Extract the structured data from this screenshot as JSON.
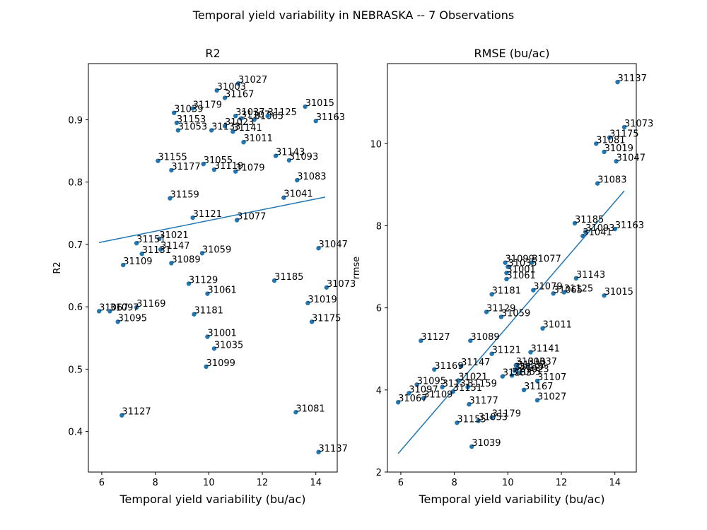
{
  "figure": {
    "suptitle": "Temporal yield variability in NEBRASKA -- 7 Observations"
  },
  "colors": {
    "marker": "#1f77b4",
    "line": "#1f77b4",
    "axis": "#000000"
  },
  "chart_data": [
    {
      "type": "scatter",
      "title": "R2",
      "xlabel": "Temporal yield variability (bu/ac)",
      "ylabel": "R2",
      "xlim": [
        5.5,
        14.8
      ],
      "ylim": [
        0.335,
        0.99
      ],
      "xticks": [
        6,
        8,
        10,
        12,
        14
      ],
      "yticks": [
        0.4,
        0.5,
        0.6,
        0.7,
        0.8,
        0.9
      ],
      "ytick_labels": [
        "0.4",
        "0.5",
        "0.6",
        "0.7",
        "0.8",
        "0.9"
      ],
      "trendline": {
        "x": [
          5.9,
          14.35
        ],
        "y": [
          0.703,
          0.776
        ]
      },
      "points": [
        {
          "label": "31027",
          "x": 11.1,
          "y": 0.958
        },
        {
          "label": "31003",
          "x": 10.3,
          "y": 0.947
        },
        {
          "label": "31167",
          "x": 10.6,
          "y": 0.935
        },
        {
          "label": "31179",
          "x": 9.4,
          "y": 0.918
        },
        {
          "label": "31039",
          "x": 8.7,
          "y": 0.911
        },
        {
          "label": "31015",
          "x": 13.6,
          "y": 0.921
        },
        {
          "label": "31037",
          "x": 11.0,
          "y": 0.906
        },
        {
          "label": "31107",
          "x": 11.2,
          "y": 0.902
        },
        {
          "label": "31065",
          "x": 11.7,
          "y": 0.9
        },
        {
          "label": "31125",
          "x": 12.2,
          "y": 0.906
        },
        {
          "label": "31163",
          "x": 14.0,
          "y": 0.898
        },
        {
          "label": "31153",
          "x": 8.8,
          "y": 0.895
        },
        {
          "label": "31023",
          "x": 10.6,
          "y": 0.89
        },
        {
          "label": "31133",
          "x": 10.1,
          "y": 0.883
        },
        {
          "label": "31141",
          "x": 10.9,
          "y": 0.881
        },
        {
          "label": "31053",
          "x": 8.85,
          "y": 0.883
        },
        {
          "label": "31011",
          "x": 11.3,
          "y": 0.864
        },
        {
          "label": "31143",
          "x": 12.5,
          "y": 0.842
        },
        {
          "label": "31093",
          "x": 13.0,
          "y": 0.835
        },
        {
          "label": "31155",
          "x": 8.1,
          "y": 0.834
        },
        {
          "label": "31055",
          "x": 9.8,
          "y": 0.829
        },
        {
          "label": "31177",
          "x": 8.6,
          "y": 0.819
        },
        {
          "label": "31119",
          "x": 10.2,
          "y": 0.82
        },
        {
          "label": "31079",
          "x": 11.0,
          "y": 0.817
        },
        {
          "label": "31083",
          "x": 13.3,
          "y": 0.803
        },
        {
          "label": "31159",
          "x": 8.55,
          "y": 0.774
        },
        {
          "label": "31041",
          "x": 12.8,
          "y": 0.775
        },
        {
          "label": "31121",
          "x": 9.4,
          "y": 0.743
        },
        {
          "label": "31077",
          "x": 11.05,
          "y": 0.739
        },
        {
          "label": "31021",
          "x": 8.15,
          "y": 0.709
        },
        {
          "label": "31151",
          "x": 7.3,
          "y": 0.702
        },
        {
          "label": "31147",
          "x": 8.2,
          "y": 0.692
        },
        {
          "label": "31131",
          "x": 7.5,
          "y": 0.685
        },
        {
          "label": "31059",
          "x": 9.75,
          "y": 0.686
        },
        {
          "label": "31047",
          "x": 14.1,
          "y": 0.694
        },
        {
          "label": "31109",
          "x": 6.8,
          "y": 0.667
        },
        {
          "label": "31089",
          "x": 8.6,
          "y": 0.67
        },
        {
          "label": "31185",
          "x": 12.45,
          "y": 0.642
        },
        {
          "label": "31129",
          "x": 9.25,
          "y": 0.637
        },
        {
          "label": "31073",
          "x": 14.4,
          "y": 0.631
        },
        {
          "label": "31061",
          "x": 9.95,
          "y": 0.621
        },
        {
          "label": "31019",
          "x": 13.7,
          "y": 0.606
        },
        {
          "label": "31169",
          "x": 7.3,
          "y": 0.599
        },
        {
          "label": "31067",
          "x": 5.9,
          "y": 0.593
        },
        {
          "label": "31097",
          "x": 6.3,
          "y": 0.593
        },
        {
          "label": "31181",
          "x": 9.45,
          "y": 0.588
        },
        {
          "label": "31095",
          "x": 6.6,
          "y": 0.576
        },
        {
          "label": "31175",
          "x": 13.85,
          "y": 0.576
        },
        {
          "label": "31001",
          "x": 9.95,
          "y": 0.552
        },
        {
          "label": "31035",
          "x": 10.2,
          "y": 0.533
        },
        {
          "label": "31099",
          "x": 9.9,
          "y": 0.504
        },
        {
          "label": "31081",
          "x": 13.25,
          "y": 0.431
        },
        {
          "label": "31127",
          "x": 6.75,
          "y": 0.426
        },
        {
          "label": "31137",
          "x": 14.1,
          "y": 0.367
        }
      ]
    },
    {
      "type": "scatter",
      "title": "RMSE (bu/ac)",
      "xlabel": "Temporal yield variability (bu/ac)",
      "ylabel": "rmse",
      "xlim": [
        5.5,
        14.8
      ],
      "ylim": [
        2.0,
        11.95
      ],
      "xticks": [
        6,
        8,
        10,
        12,
        14
      ],
      "yticks": [
        2,
        4,
        6,
        8,
        10
      ],
      "ytick_labels": [
        "2",
        "4",
        "6",
        "8",
        "10"
      ],
      "trendline": {
        "x": [
          5.9,
          14.35
        ],
        "y": [
          2.45,
          8.85
        ]
      },
      "points": [
        {
          "label": "31137",
          "x": 14.1,
          "y": 11.5
        },
        {
          "label": "31073",
          "x": 14.35,
          "y": 10.4
        },
        {
          "label": "31175",
          "x": 13.8,
          "y": 10.15
        },
        {
          "label": "31081",
          "x": 13.3,
          "y": 10.0
        },
        {
          "label": "31019",
          "x": 13.6,
          "y": 9.8
        },
        {
          "label": "31047",
          "x": 14.05,
          "y": 9.57
        },
        {
          "label": "31083",
          "x": 13.35,
          "y": 9.03
        },
        {
          "label": "31185",
          "x": 12.5,
          "y": 8.06
        },
        {
          "label": "31163",
          "x": 14.0,
          "y": 7.92
        },
        {
          "label": "31093",
          "x": 12.9,
          "y": 7.85
        },
        {
          "label": "31041",
          "x": 12.8,
          "y": 7.75
        },
        {
          "label": "31099",
          "x": 9.9,
          "y": 7.1
        },
        {
          "label": "31077",
          "x": 10.9,
          "y": 7.1
        },
        {
          "label": "31035",
          "x": 10.0,
          "y": 7.0
        },
        {
          "label": "31001",
          "x": 9.95,
          "y": 6.85
        },
        {
          "label": "31061",
          "x": 9.95,
          "y": 6.7
        },
        {
          "label": "31143",
          "x": 12.55,
          "y": 6.72
        },
        {
          "label": "31079",
          "x": 10.95,
          "y": 6.43
        },
        {
          "label": "31065",
          "x": 11.7,
          "y": 6.35
        },
        {
          "label": "31125",
          "x": 12.1,
          "y": 6.38
        },
        {
          "label": "31181",
          "x": 9.4,
          "y": 6.33
        },
        {
          "label": "31015",
          "x": 13.6,
          "y": 6.3
        },
        {
          "label": "31129",
          "x": 9.2,
          "y": 5.9
        },
        {
          "label": "31059",
          "x": 9.75,
          "y": 5.78
        },
        {
          "label": "31011",
          "x": 11.3,
          "y": 5.5
        },
        {
          "label": "31127",
          "x": 6.75,
          "y": 5.2
        },
        {
          "label": "31089",
          "x": 8.6,
          "y": 5.2
        },
        {
          "label": "31121",
          "x": 9.4,
          "y": 4.88
        },
        {
          "label": "31141",
          "x": 10.85,
          "y": 4.92
        },
        {
          "label": "31003",
          "x": 10.3,
          "y": 4.6
        },
        {
          "label": "31037",
          "x": 10.75,
          "y": 4.6
        },
        {
          "label": "31147",
          "x": 8.25,
          "y": 4.58
        },
        {
          "label": "31169",
          "x": 7.25,
          "y": 4.5
        },
        {
          "label": "31133",
          "x": 10.35,
          "y": 4.52
        },
        {
          "label": "31119",
          "x": 10.25,
          "y": 4.47
        },
        {
          "label": "31023",
          "x": 10.45,
          "y": 4.42
        },
        {
          "label": "31055",
          "x": 10.15,
          "y": 4.35
        },
        {
          "label": "31153",
          "x": 9.8,
          "y": 4.33
        },
        {
          "label": "31021",
          "x": 8.15,
          "y": 4.23
        },
        {
          "label": "31107",
          "x": 11.1,
          "y": 4.22
        },
        {
          "label": "31095",
          "x": 6.6,
          "y": 4.13
        },
        {
          "label": "31131",
          "x": 7.55,
          "y": 4.07
        },
        {
          "label": "31159",
          "x": 8.5,
          "y": 4.07
        },
        {
          "label": "31167",
          "x": 10.6,
          "y": 4.0
        },
        {
          "label": "31097",
          "x": 6.3,
          "y": 3.92
        },
        {
          "label": "31151",
          "x": 7.95,
          "y": 3.96
        },
        {
          "label": "31109",
          "x": 6.85,
          "y": 3.8
        },
        {
          "label": "31027",
          "x": 11.1,
          "y": 3.75
        },
        {
          "label": "31067",
          "x": 5.9,
          "y": 3.7
        },
        {
          "label": "31177",
          "x": 8.55,
          "y": 3.65
        },
        {
          "label": "31179",
          "x": 9.4,
          "y": 3.33
        },
        {
          "label": "31053",
          "x": 8.9,
          "y": 3.25
        },
        {
          "label": "31155",
          "x": 8.1,
          "y": 3.2
        },
        {
          "label": "31039",
          "x": 8.65,
          "y": 2.62
        }
      ]
    }
  ]
}
